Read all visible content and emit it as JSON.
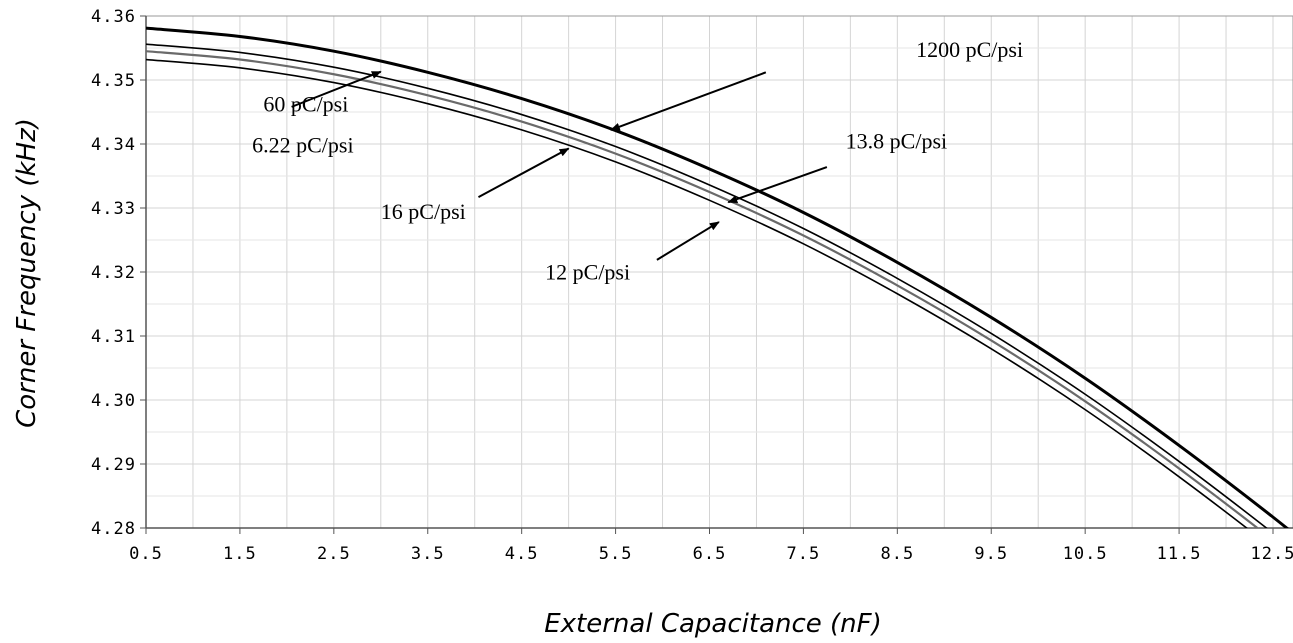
{
  "chart_data": {
    "type": "line",
    "xlabel": "External Capacitance (nF)",
    "ylabel": "Corner Frequency (kHz)",
    "xlim": [
      0.5,
      13.0
    ],
    "ylim": [
      4.28,
      4.36
    ],
    "x_ticks": [
      "0.5",
      "1.5",
      "2.5",
      "3.5",
      "4.5",
      "5.5",
      "6.5",
      "7.5",
      "8.5",
      "9.5",
      "10.5",
      "11.5",
      "12.5"
    ],
    "y_ticks": [
      "4.28",
      "4.29",
      "4.30",
      "4.31",
      "4.32",
      "4.33",
      "4.34",
      "4.35",
      "4.36"
    ],
    "grid": true,
    "series": [
      {
        "name": "1200 pC/psi",
        "color": "#000000",
        "width": 3,
        "x": [
          0.5,
          1.5,
          2.5,
          3.5,
          4.5,
          5.5,
          6.5,
          7.5,
          8.5,
          9.5,
          10.5,
          11.5,
          12.5,
          13.0
        ],
        "y": [
          4.3581,
          4.3568,
          4.3545,
          4.3512,
          4.3471,
          4.3421,
          4.3361,
          4.3293,
          4.3215,
          4.3129,
          4.3034,
          4.2929,
          4.2817,
          4.2757
        ]
      },
      {
        "name": "60 pC/psi",
        "color": "#000000",
        "width": 1.6,
        "x": [
          0.5,
          1.5,
          2.5,
          3.5,
          4.5,
          5.5,
          6.5,
          7.5,
          8.5,
          9.5,
          10.5,
          11.5,
          12.5,
          13.0
        ],
        "y": [
          4.3556,
          4.3543,
          4.352,
          4.3487,
          4.3446,
          4.3396,
          4.3336,
          4.3268,
          4.319,
          4.3104,
          4.3009,
          4.2904,
          4.2792,
          4.2732
        ]
      },
      {
        "name": "16 pC/psi",
        "color": "#6a6a6a",
        "width": 2.2,
        "x": [
          0.5,
          1.5,
          2.5,
          3.5,
          4.5,
          5.5,
          6.5,
          7.5,
          8.5,
          9.5,
          10.5,
          11.5,
          12.5,
          13.0
        ],
        "y": [
          4.3545,
          4.3532,
          4.3509,
          4.3476,
          4.3435,
          4.3385,
          4.3325,
          4.3257,
          4.3179,
          4.3093,
          4.2998,
          4.2893,
          4.2781,
          4.2721
        ]
      },
      {
        "name": "6.22 pC/psi",
        "color": "#000000",
        "width": 1.6,
        "x": [
          0.5,
          1.5,
          2.5,
          3.5,
          4.5,
          5.5,
          6.5,
          7.5,
          8.5,
          9.5,
          10.5,
          11.5,
          12.5,
          13.0
        ],
        "y": [
          4.3532,
          4.3519,
          4.3496,
          4.3463,
          4.3422,
          4.3372,
          4.3312,
          4.3244,
          4.3166,
          4.308,
          4.2985,
          4.288,
          4.2768,
          4.2708
        ]
      }
    ],
    "annotations": [
      {
        "text": "1200 pC/psi",
        "tx": 8.7,
        "ty": 4.3536,
        "ax": 7.1,
        "ay": 4.3512,
        "hx": 5.45,
        "hy": 4.3422
      },
      {
        "text": "60 pC/psi",
        "tx": 1.75,
        "ty": 4.3451,
        "ax": null,
        "ay": null,
        "hx": null,
        "hy": null
      },
      {
        "text": "6.22 pC/psi",
        "tx": 1.63,
        "ty": 4.3387,
        "ax": 2.05,
        "ay": 4.3458,
        "hx": 3.0,
        "hy": 4.3513
      },
      {
        "text": "16 pC/psi",
        "tx": 3.0,
        "ty": 4.3283,
        "ax": 4.04,
        "ay": 4.3317,
        "hx": 5.0,
        "hy": 4.3393
      },
      {
        "text": "13.8 pC/psi",
        "tx": 7.95,
        "ty": 4.3393,
        "ax": 7.75,
        "ay": 4.3364,
        "hx": 6.7,
        "hy": 4.3309
      },
      {
        "text": "12 pC/psi",
        "tx": 4.75,
        "ty": 4.3188,
        "ax": 5.94,
        "ay": 4.3219,
        "hx": 6.6,
        "hy": 4.3278
      }
    ]
  }
}
